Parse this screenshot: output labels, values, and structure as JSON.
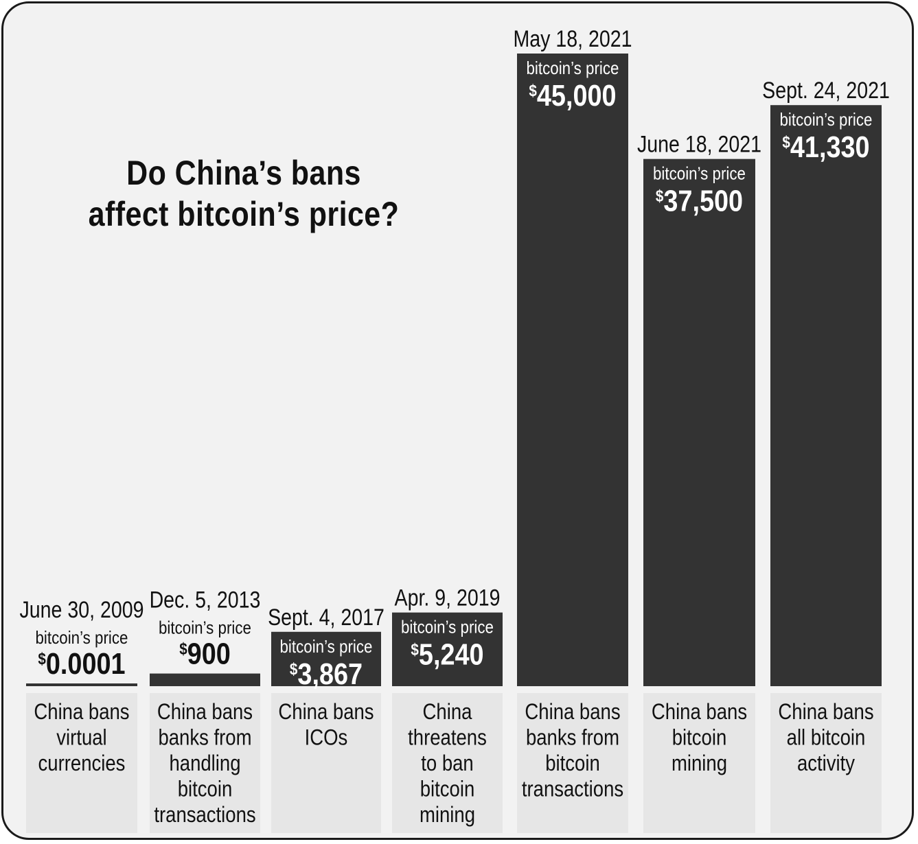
{
  "title_lines": [
    "Do China’s bans",
    "affect bitcoin’s price?"
  ],
  "colors": {
    "bar": "#333333",
    "label_box": "#e6e6e6",
    "background": "#f2f2f2"
  },
  "chart_data": {
    "type": "bar",
    "title": "Do China’s bans affect bitcoin’s price?",
    "value_unit": "$",
    "price_caption": "bitcoin’s price",
    "categories": [
      "June 30, 2009",
      "Dec. 5, 2013",
      "Sept. 4, 2017",
      "Apr. 9, 2019",
      "May 18, 2021",
      "June 18, 2021",
      "Sept. 24, 2021"
    ],
    "values": [
      0.0001,
      900,
      3867,
      5240,
      45000,
      37500,
      41330
    ],
    "value_labels": [
      "0.0001",
      "900",
      "3,867",
      "5,240",
      "45,000",
      "37,500",
      "41,330"
    ],
    "events": [
      [
        "China bans",
        "virtual",
        "currencies"
      ],
      [
        "China bans",
        "banks from",
        "handling",
        "bitcoin",
        "transactions"
      ],
      [
        "China bans",
        "ICOs"
      ],
      [
        "China",
        "threatens",
        "to ban",
        "bitcoin",
        "mining"
      ],
      [
        "China bans",
        "banks from",
        "bitcoin",
        "transactions"
      ],
      [
        "China bans",
        "bitcoin",
        "mining"
      ],
      [
        "China bans",
        "all bitcoin",
        "activity"
      ]
    ],
    "xlabel": "",
    "ylabel": "",
    "grid": false,
    "legend": "none"
  }
}
